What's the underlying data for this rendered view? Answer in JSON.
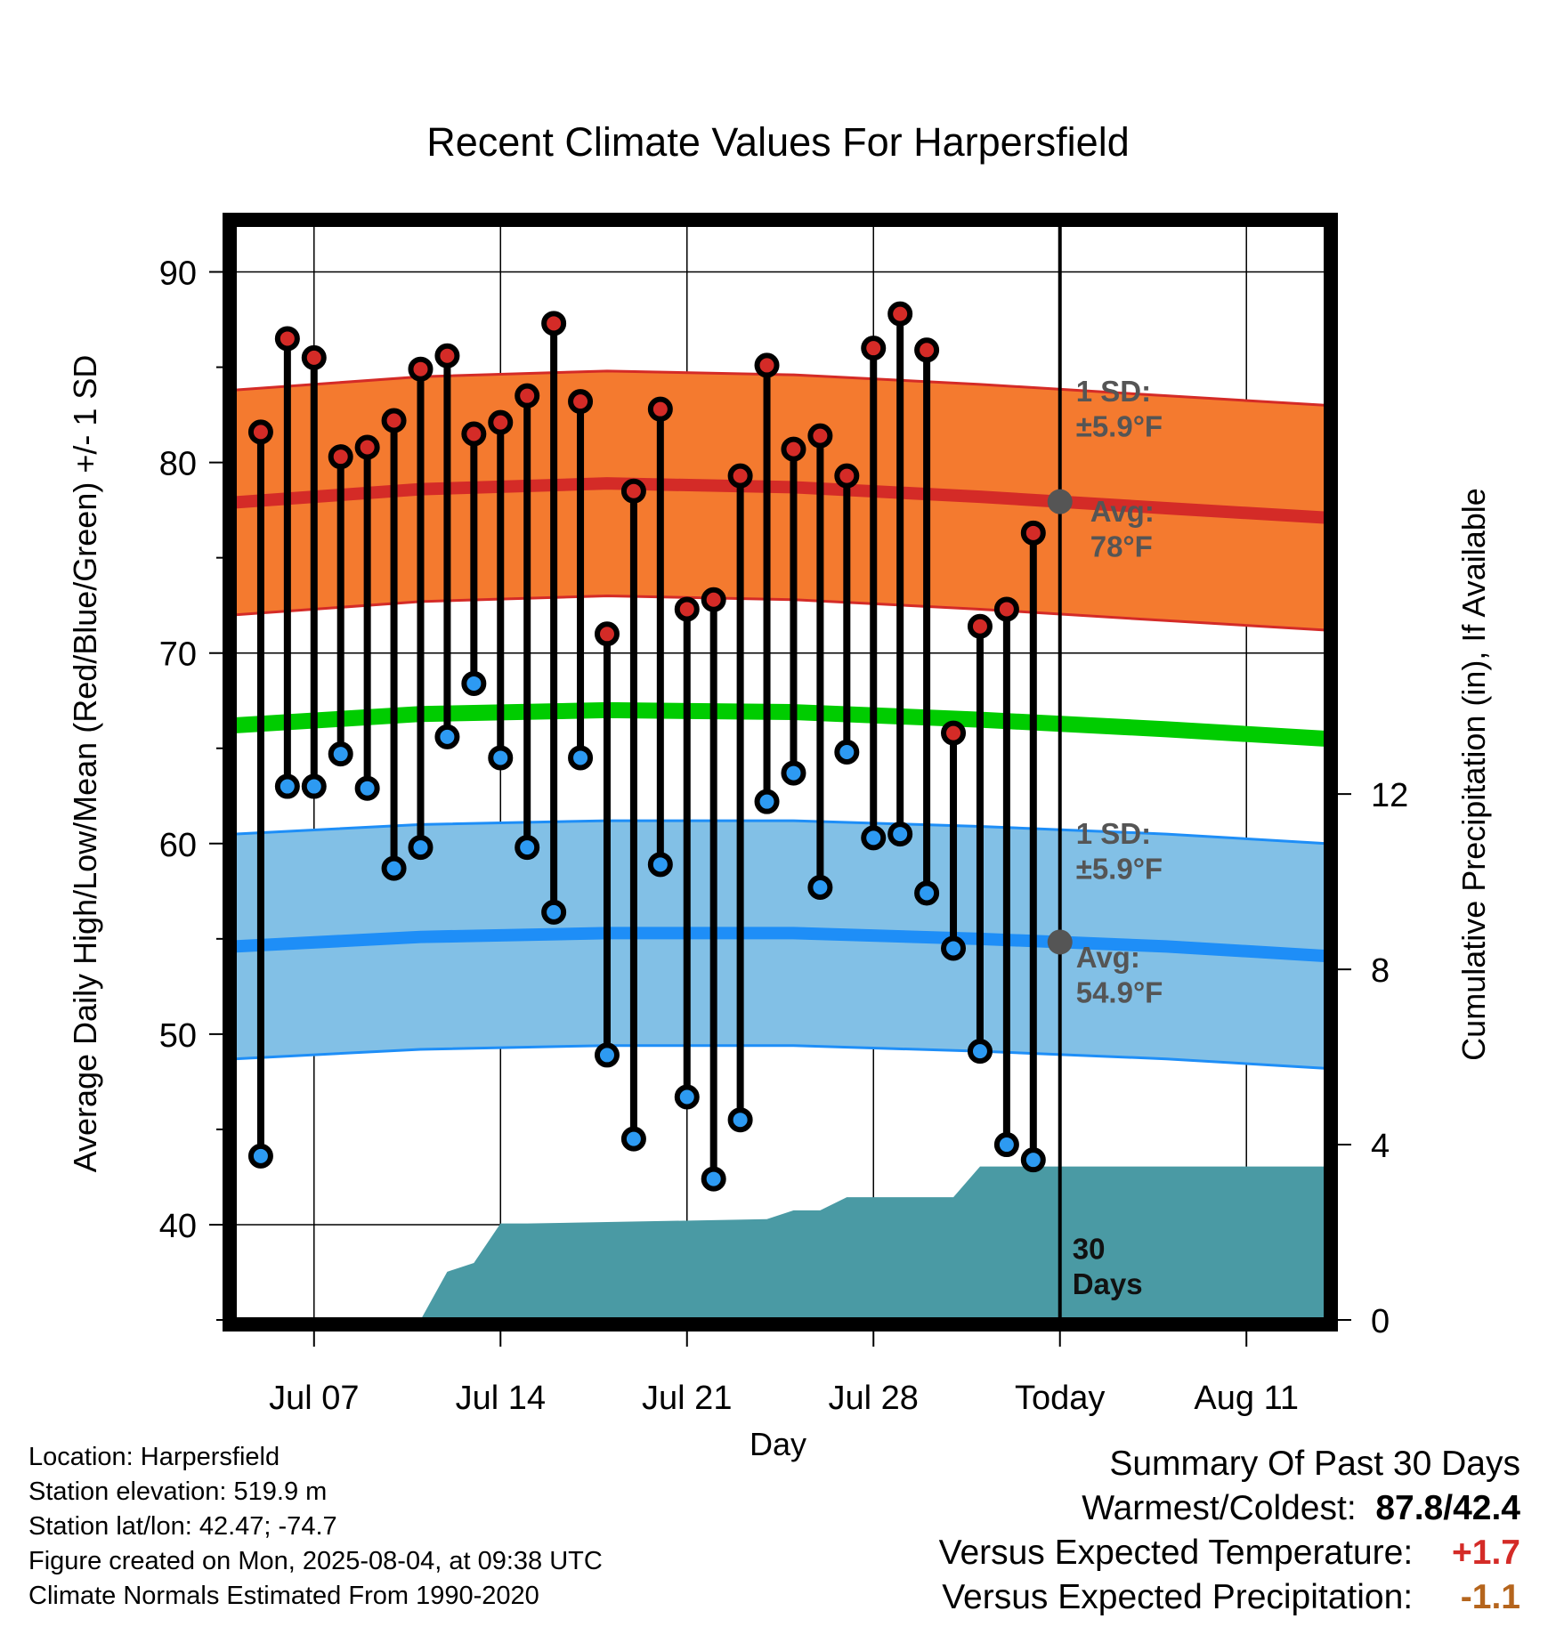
{
  "chart_data": {
    "type": "line",
    "title": "Recent Climate Values For Harpersfield",
    "xlabel": "Day",
    "ylabel": "Average Daily High/Low/Mean (Red/Blue/Green) +/- 1 SD",
    "y2label": "Cumulative Precipitation (in), If Available",
    "x_tick_labels": [
      "Jul 07",
      "Jul 14",
      "Jul 21",
      "Jul 28",
      "Today",
      "Aug 11"
    ],
    "x_tick_dates": [
      "2025-07-07",
      "2025-07-14",
      "2025-07-21",
      "2025-07-28",
      "2025-08-04",
      "2025-08-11"
    ],
    "xlim": [
      "2025-07-04",
      "2025-08-14"
    ],
    "ylim": [
      35,
      92.5
    ],
    "y_ticks": [
      40,
      50,
      60,
      70,
      80,
      90
    ],
    "y2lim": [
      0,
      25
    ],
    "y2_ticks": [
      0,
      4,
      8,
      12
    ],
    "grid": true,
    "today_marker": {
      "date": "2025-08-04",
      "label": "30\nDays"
    },
    "daily": {
      "dates": [
        "2025-07-05",
        "2025-07-06",
        "2025-07-07",
        "2025-07-08",
        "2025-07-09",
        "2025-07-10",
        "2025-07-11",
        "2025-07-12",
        "2025-07-13",
        "2025-07-14",
        "2025-07-15",
        "2025-07-16",
        "2025-07-17",
        "2025-07-18",
        "2025-07-19",
        "2025-07-20",
        "2025-07-21",
        "2025-07-22",
        "2025-07-23",
        "2025-07-24",
        "2025-07-25",
        "2025-07-26",
        "2025-07-27",
        "2025-07-28",
        "2025-07-29",
        "2025-07-30",
        "2025-07-31",
        "2025-08-01",
        "2025-08-02",
        "2025-08-03"
      ],
      "high": [
        81.6,
        86.5,
        85.5,
        80.3,
        80.8,
        82.2,
        84.9,
        85.6,
        81.5,
        82.1,
        83.5,
        87.3,
        83.2,
        71.0,
        78.5,
        82.8,
        72.3,
        72.8,
        79.3,
        85.1,
        80.7,
        81.4,
        79.3,
        86.0,
        87.8,
        85.9,
        65.8,
        71.4,
        72.3,
        76.3
      ],
      "low": [
        43.6,
        63.0,
        63.0,
        64.7,
        62.9,
        58.7,
        59.8,
        65.6,
        68.4,
        64.5,
        59.8,
        56.4,
        64.5,
        48.9,
        44.5,
        58.9,
        46.7,
        42.4,
        45.5,
        62.2,
        63.7,
        57.7,
        64.8,
        60.3,
        60.5,
        57.4,
        54.5,
        49.1,
        44.2,
        43.4
      ]
    },
    "normals": {
      "dates": [
        "2025-07-04",
        "2025-07-11",
        "2025-07-18",
        "2025-07-25",
        "2025-08-01",
        "2025-08-08",
        "2025-08-14"
      ],
      "high_avg": [
        77.9,
        78.6,
        78.9,
        78.7,
        78.2,
        77.6,
        77.1
      ],
      "low_avg": [
        54.6,
        55.1,
        55.3,
        55.3,
        55.0,
        54.6,
        54.1
      ],
      "mean_avg": [
        66.2,
        66.8,
        67.0,
        66.9,
        66.5,
        66.0,
        65.5
      ],
      "sd": 5.9
    },
    "precipitation": {
      "dates": [
        "2025-07-04",
        "2025-07-11",
        "2025-07-12",
        "2025-07-13",
        "2025-07-14",
        "2025-07-15",
        "2025-07-24",
        "2025-07-25",
        "2025-07-26",
        "2025-07-27",
        "2025-07-31",
        "2025-08-01",
        "2025-08-14"
      ],
      "cumulative": [
        0,
        0,
        1.1,
        1.3,
        2.2,
        2.2,
        2.3,
        2.5,
        2.5,
        2.8,
        2.8,
        3.5,
        3.5
      ]
    },
    "annotations": {
      "high_sd": "1 SD:\n±5.9°F",
      "high_avg": "Avg:\n78°F",
      "low_sd": "1 SD:\n±5.9°F",
      "low_avg": "Avg:\n54.9°F"
    },
    "colors": {
      "high_band": "#f47a2f",
      "high_line": "#d42b27",
      "low_band": "#82c0e6",
      "low_line": "#1e8ef7",
      "mean_line": "#00cc00",
      "precip": "#4a9aa4",
      "high_dot": "#d42b27",
      "low_dot": "#2d9af2",
      "today_dot": "#555555",
      "temp_anomaly": "#d42b27",
      "precip_anomaly": "#b5651d"
    }
  },
  "footer": {
    "location": "Location: Harpersfield",
    "elevation": "Station elevation: 519.9 m",
    "latlon": "Station lat/lon: 42.47; -74.7",
    "created": "Figure created on Mon, 2025-08-04, at 09:38 UTC",
    "normals": "Climate Normals Estimated From 1990-2020"
  },
  "summary": {
    "heading": "Summary Of Past 30 Days",
    "warm_cold_label": "Warmest/Coldest:",
    "warm_cold_value": "87.8/42.4",
    "temp_label": "Versus Expected Temperature:",
    "temp_value": "+1.7",
    "precip_label": "Versus Expected Precipitation:",
    "precip_value": "-1.1"
  }
}
